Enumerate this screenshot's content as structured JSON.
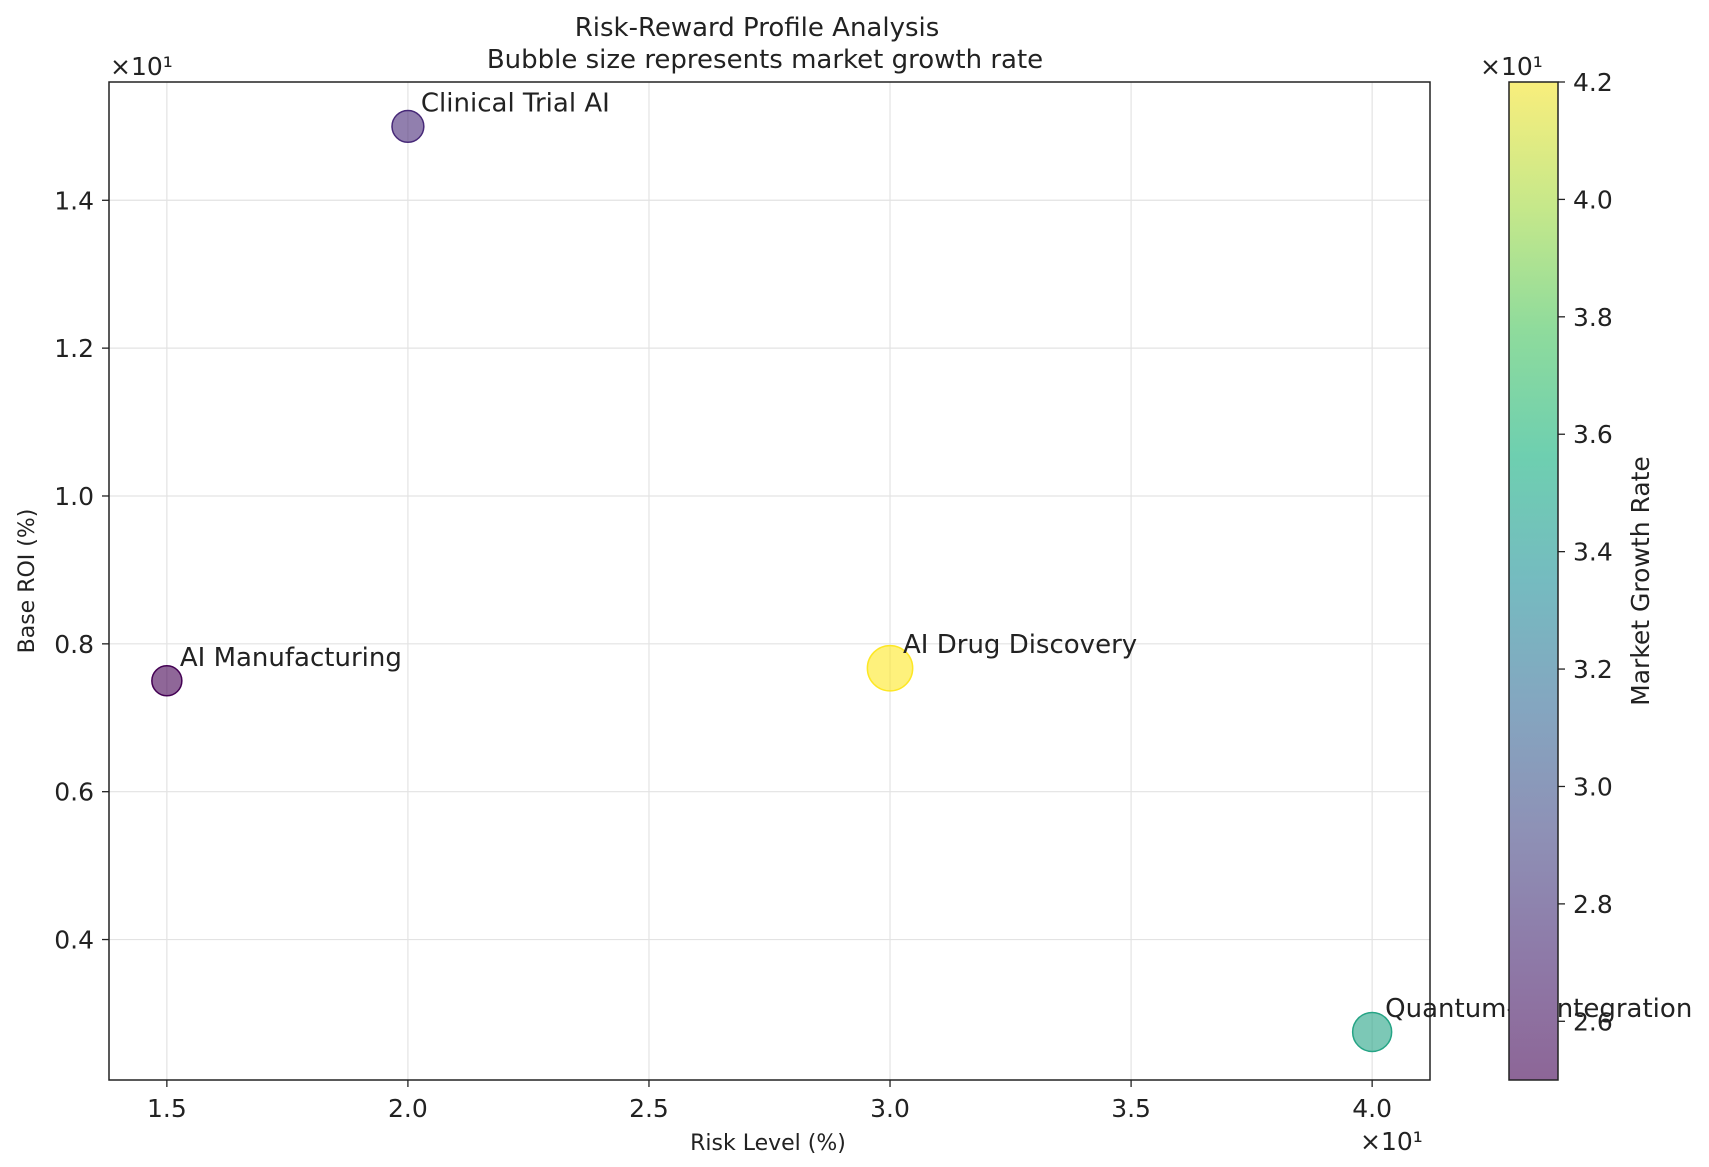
{
  "chart_data": {
    "type": "scatter",
    "title": "Risk-Reward Profile Analysis",
    "subtitle": "Bubble size represents market growth rate",
    "xlabel": "Risk Level (%)",
    "ylabel": "Base ROI (%)",
    "x_multiplier_label": "×10¹",
    "y_multiplier_label": "×10¹",
    "xlim": [
      13.8,
      41.2
    ],
    "ylim": [
      2.1,
      15.6
    ],
    "grid": true,
    "x_ticks": [
      {
        "value": 15,
        "label": "1.5"
      },
      {
        "value": 20,
        "label": "2.0"
      },
      {
        "value": 25,
        "label": "2.5"
      },
      {
        "value": 30,
        "label": "3.0"
      },
      {
        "value": 35,
        "label": "3.5"
      },
      {
        "value": 40,
        "label": "4.0"
      }
    ],
    "y_ticks": [
      {
        "value": 4,
        "label": "0.4"
      },
      {
        "value": 6,
        "label": "0.6"
      },
      {
        "value": 8,
        "label": "0.8"
      },
      {
        "value": 10,
        "label": "1.0"
      },
      {
        "value": 12,
        "label": "1.2"
      },
      {
        "value": 14,
        "label": "1.4"
      }
    ],
    "points": [
      {
        "name": "AI Manufacturing",
        "x": 15,
        "y": 7.5,
        "growth": 25
      },
      {
        "name": "Clinical Trial AI",
        "x": 20,
        "y": 15.0,
        "growth": 27
      },
      {
        "name": "AI Drug Discovery",
        "x": 30,
        "y": 7.67,
        "growth": 42
      },
      {
        "name": "Quantum-AI Integration",
        "x": 40,
        "y": 2.75,
        "growth": 35
      }
    ],
    "colorbar": {
      "label": "Market Growth Rate",
      "multiplier_label": "×10¹",
      "colormap": "viridis",
      "range": [
        25,
        42
      ],
      "ticks": [
        {
          "value": 26,
          "label": "2.6"
        },
        {
          "value": 28,
          "label": "2.8"
        },
        {
          "value": 30,
          "label": "3.0"
        },
        {
          "value": 32,
          "label": "3.2"
        },
        {
          "value": 34,
          "label": "3.4"
        },
        {
          "value": 36,
          "label": "3.6"
        },
        {
          "value": 38,
          "label": "3.8"
        },
        {
          "value": 40,
          "label": "4.0"
        },
        {
          "value": 42,
          "label": "4.2"
        }
      ]
    }
  }
}
